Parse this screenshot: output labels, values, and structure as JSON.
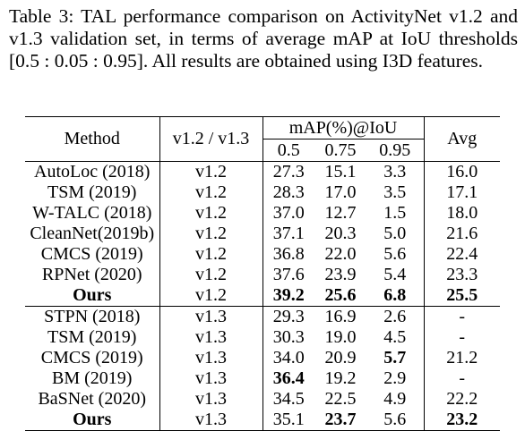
{
  "caption": "Table 3: TAL performance comparison on ActivityNet v1.2 and v1.3 validation set, in terms of average mAP at IoU thresholds [0.5 : 0.05 : 0.95]. All results are obtained using I3D features.",
  "table": {
    "header": {
      "method": "Method",
      "version": "v1.2 / v1.3",
      "map_group": "mAP(%)@IoU",
      "iou_05": "0.5",
      "iou_075": "0.75",
      "iou_095": "0.95",
      "avg": "Avg"
    },
    "rows": [
      {
        "method": "AutoLoc (2018)",
        "version": "v1.2",
        "m05": "27.3",
        "m075": "15.1",
        "m095": "3.3",
        "avg": "16.0"
      },
      {
        "method": "TSM (2019)",
        "version": "v1.2",
        "m05": "28.3",
        "m075": "17.0",
        "m095": "3.5",
        "avg": "17.1"
      },
      {
        "method": "W-TALC (2018)",
        "version": "v1.2",
        "m05": "37.0",
        "m075": "12.7",
        "m095": "1.5",
        "avg": "18.0"
      },
      {
        "method": "CleanNet(2019b)",
        "version": "v1.2",
        "m05": "37.1",
        "m075": "20.3",
        "m095": "5.0",
        "avg": "21.6"
      },
      {
        "method": "CMCS (2019)",
        "version": "v1.2",
        "m05": "36.8",
        "m075": "22.0",
        "m095": "5.6",
        "avg": "22.4"
      },
      {
        "method": "RPNet (2020)",
        "version": "v1.2",
        "m05": "37.6",
        "m075": "23.9",
        "m095": "5.4",
        "avg": "23.3"
      },
      {
        "method": "Ours",
        "version": "v1.2",
        "m05": "39.2",
        "m075": "25.6",
        "m095": "6.8",
        "avg": "25.5"
      },
      {
        "method": "STPN (2018)",
        "version": "v1.3",
        "m05": "29.3",
        "m075": "16.9",
        "m095": "2.6",
        "avg": "-"
      },
      {
        "method": "TSM (2019)",
        "version": "v1.3",
        "m05": "30.3",
        "m075": "19.0",
        "m095": "4.5",
        "avg": "-"
      },
      {
        "method": "CMCS (2019)",
        "version": "v1.3",
        "m05": "34.0",
        "m075": "20.9",
        "m095": "5.7",
        "avg": "21.2"
      },
      {
        "method": "BM (2019)",
        "version": "v1.3",
        "m05": "36.4",
        "m075": "19.2",
        "m095": "2.9",
        "avg": "-"
      },
      {
        "method": "BaSNet (2020)",
        "version": "v1.3",
        "m05": "34.5",
        "m075": "22.5",
        "m095": "4.9",
        "avg": "22.2"
      },
      {
        "method": "Ours",
        "version": "v1.3",
        "m05": "35.1",
        "m075": "23.7",
        "m095": "5.6",
        "avg": "23.2"
      }
    ]
  }
}
